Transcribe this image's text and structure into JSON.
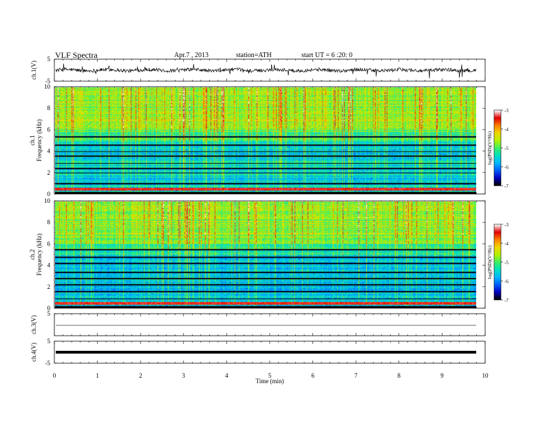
{
  "header": {
    "title": "VLF Spectra",
    "date": "Apr.7 , 2013",
    "station": "station=ATH",
    "start": "start UT = 6 :20: 0"
  },
  "colors": {
    "spectrogram_scale": [
      "#000000",
      "#0000c0",
      "#0060ff",
      "#00b8ff",
      "#00e0c0",
      "#40f060",
      "#b8f000",
      "#f0d800",
      "#ff8000",
      "#e00000",
      "#ffffff"
    ],
    "trace": "#000000"
  },
  "chart_data": [
    {
      "type": "line",
      "name": "ch1-waveform",
      "ylabel": "ch.1(V)",
      "ylim": [
        -5,
        5
      ],
      "ytick_labels": [
        "5",
        "-5"
      ],
      "xlim": [
        0,
        10
      ],
      "baseline": 0,
      "description_values": {
        "typical_range": [
          -1.5,
          1.5
        ],
        "spike_extent": [
          -5,
          5
        ]
      }
    },
    {
      "type": "heatmap",
      "name": "ch1-spectrogram",
      "ylabel": "ch.1 Frequency (kHz)",
      "ylim": [
        0,
        10
      ],
      "ytick_labels": [
        "0",
        "2",
        "4",
        "6",
        "8",
        "10"
      ],
      "xlim": [
        0,
        9.8
      ],
      "colorbar": {
        "label": "log(PSD)(V²/Hz)",
        "range": [
          -7,
          -3
        ],
        "tick_labels": [
          "-3",
          "-4",
          "-5",
          "-6",
          "-7"
        ]
      },
      "bands_khz": [
        0.5,
        1.0,
        2.0,
        2.4,
        2.9,
        3.6,
        4.0,
        4.6,
        5.4
      ],
      "background_level": -5.5
    },
    {
      "type": "heatmap",
      "name": "ch2-spectrogram",
      "ylabel": "ch.2 Frequency (kHz)",
      "ylim": [
        0,
        10
      ],
      "ytick_labels": [
        "0",
        "2",
        "4",
        "6",
        "8",
        "10"
      ],
      "xlim": [
        0,
        9.8
      ],
      "colorbar": {
        "label": "log(PSD)(V²/Hz)",
        "range": [
          -7,
          -3
        ],
        "tick_labels": [
          "-3",
          "-4",
          "-5",
          "-6",
          "-7"
        ]
      },
      "bands_khz": [
        0.4,
        0.9,
        1.6,
        2.2,
        2.8,
        3.4,
        4.2,
        4.8,
        5.5
      ],
      "background_level": -5.6
    },
    {
      "type": "line",
      "name": "ch3-waveform",
      "ylabel": "ch.3(V)",
      "ylim": [
        -5,
        5
      ],
      "ytick_labels": [
        "5"
      ],
      "xlim": [
        0,
        9.8
      ],
      "baseline": -0.3
    },
    {
      "type": "line",
      "name": "ch4-waveform",
      "ylabel": "ch.4(V)",
      "ylim": [
        -5,
        5
      ],
      "ytick_labels": [
        "5",
        "-5"
      ],
      "xlim": [
        0,
        9.8
      ],
      "baseline": 0
    }
  ],
  "xaxis": {
    "label": "Time (min)",
    "range": [
      0,
      10
    ],
    "tick_labels": [
      "0",
      "1",
      "2",
      "3",
      "4",
      "5",
      "6",
      "7",
      "8",
      "9",
      "10"
    ]
  }
}
